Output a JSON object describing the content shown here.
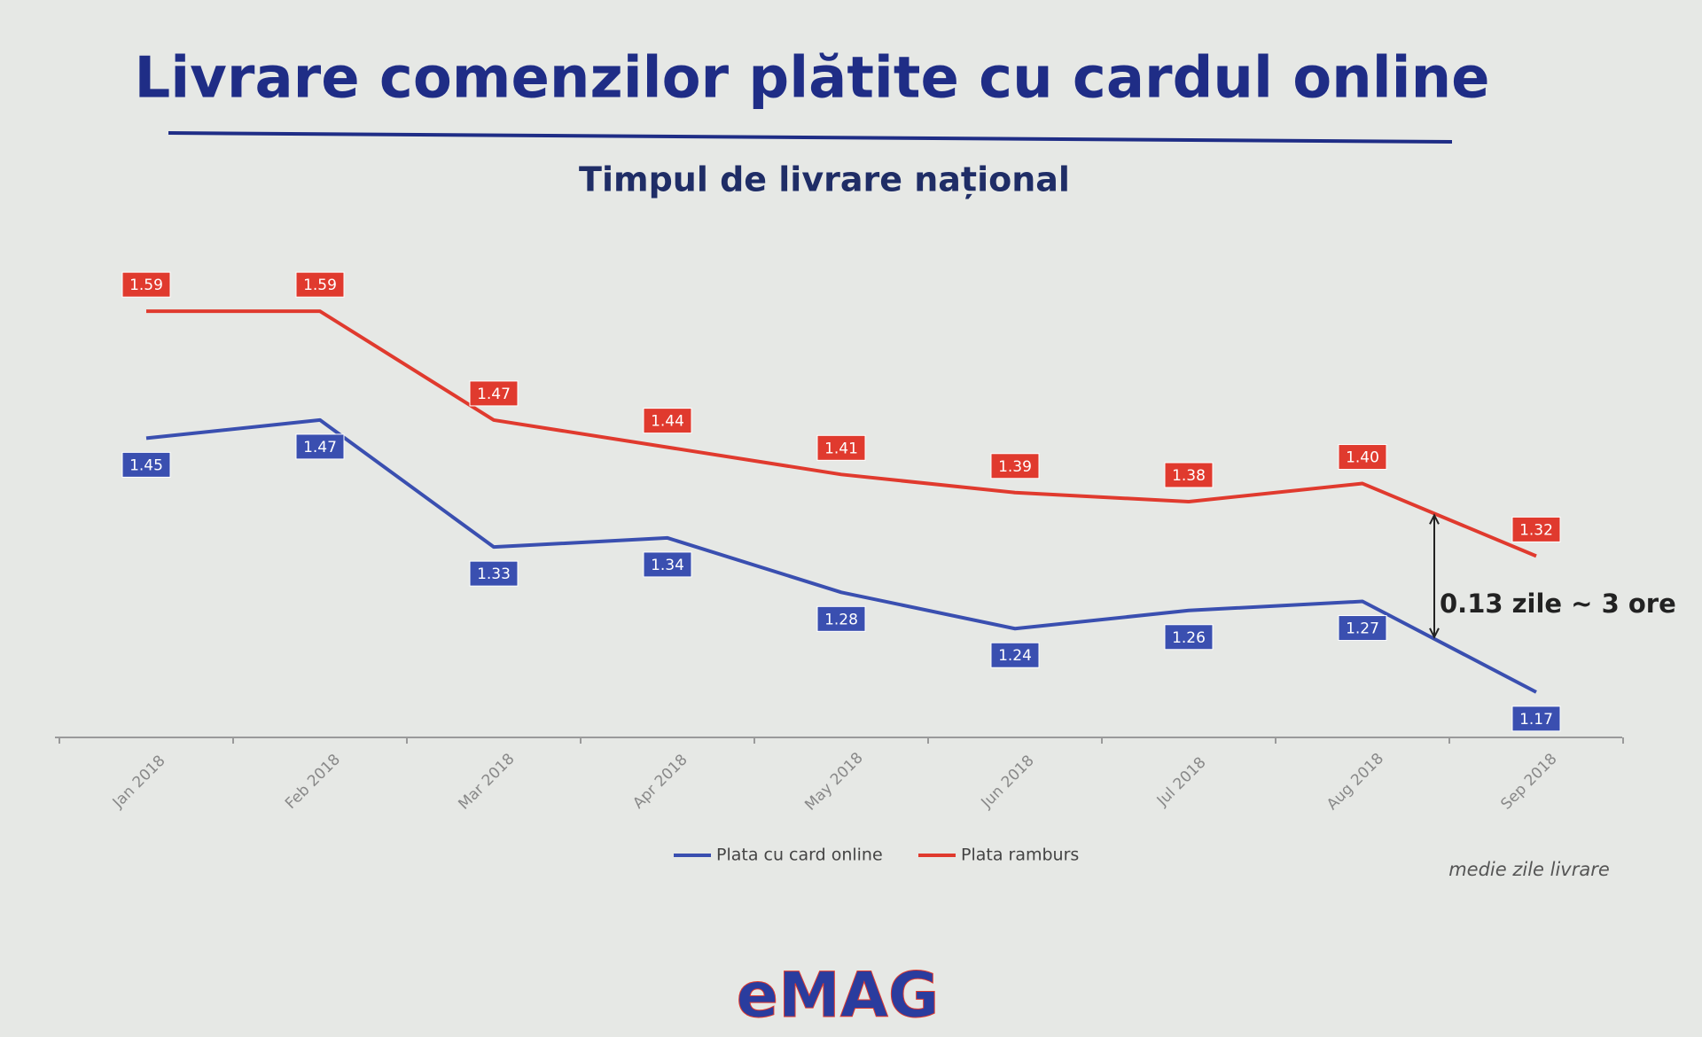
{
  "chart_data": {
    "type": "line",
    "title": "Livrare comenzilor plătite cu cardul online",
    "subtitle": "Timpul de livrare național",
    "categories": [
      "Jan 2018",
      "Feb 2018",
      "Mar 2018",
      "Apr 2018",
      "May 2018",
      "Jun 2018",
      "Jul 2018",
      "Aug 2018",
      "Sep 2018"
    ],
    "series": [
      {
        "name": "Plata cu card online",
        "color": "#3a4fb0",
        "values": [
          1.45,
          1.47,
          1.33,
          1.34,
          1.28,
          1.24,
          1.26,
          1.27,
          1.17
        ],
        "value_labels": [
          "1.45",
          "1.47",
          "1.33",
          "1.34",
          "1.28",
          "1.24",
          "1.26",
          "1.27",
          "1.17"
        ],
        "label_side": "below"
      },
      {
        "name": "Plata ramburs",
        "color": "#e03a2e",
        "values": [
          1.59,
          1.59,
          1.47,
          1.44,
          1.41,
          1.39,
          1.38,
          1.4,
          1.32
        ],
        "value_labels": [
          "1.59",
          "1.59",
          "1.47",
          "1.44",
          "1.41",
          "1.39",
          "1.38",
          "1.40",
          "1.32"
        ],
        "label_side": "above"
      }
    ],
    "ylim": [
      1.12,
      1.64
    ],
    "annotation": "0.13 zile ~ 3 ore",
    "note": "medie zile livrare",
    "logo": "eMAG"
  }
}
